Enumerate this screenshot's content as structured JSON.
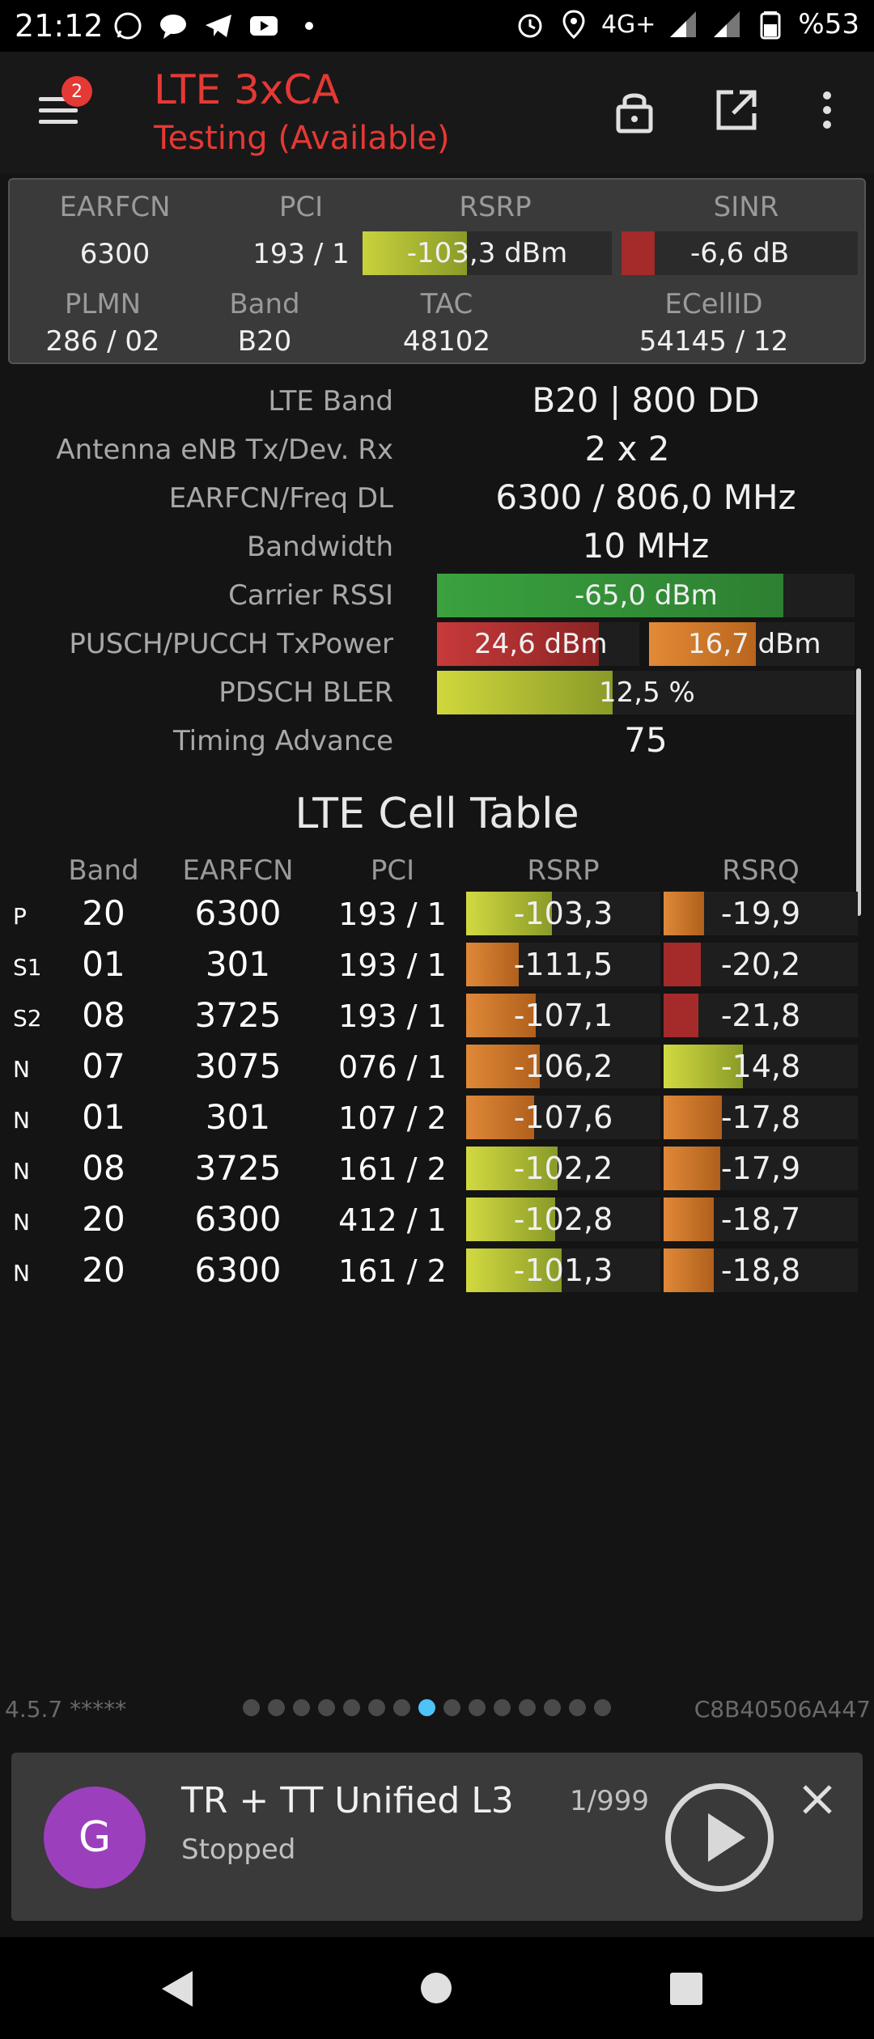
{
  "status_bar": {
    "time": "21:12",
    "network": "4G+",
    "battery": "%53",
    "left_icons": [
      "whatsapp-icon",
      "chat-bubble-icon",
      "telegram-icon",
      "youtube-icon",
      "dot-icon"
    ],
    "right_icons": [
      "alarm-icon",
      "location-icon",
      "signal-icon",
      "signal-icon",
      "battery-icon"
    ]
  },
  "app_bar": {
    "title": "LTE 3xCA",
    "subtitle": "Testing (Available)",
    "menu_badge": "2",
    "accent": "#e53935"
  },
  "summary": {
    "headers": {
      "earfcn": "EARFCN",
      "pci": "PCI",
      "rsrp": "RSRP",
      "sinr": "SINR",
      "plmn": "PLMN",
      "band": "Band",
      "tac": "TAC",
      "ecellid": "ECellID"
    },
    "earfcn": "6300",
    "pci": "193 / 1",
    "rsrp": {
      "text": "-103,3 dBm",
      "level": 0.42
    },
    "sinr": {
      "text": "-6,6 dB",
      "level": 0.14
    },
    "plmn": "286 / 02",
    "band": "B20",
    "tac": "48102",
    "ecellid": "54145 / 12"
  },
  "details": {
    "lte_band": {
      "label": "LTE Band",
      "value": "B20 | 800 DD"
    },
    "antenna": {
      "label": "Antenna eNB Tx/Dev. Rx",
      "value": "2 x 2"
    },
    "earfcn_freq": {
      "label": "EARFCN/Freq DL",
      "value": "6300 / 806,0 MHz"
    },
    "bandwidth": {
      "label": "Bandwidth",
      "value": "10 MHz"
    },
    "rssi": {
      "label": "Carrier RSSI",
      "value": "-65,0 dBm",
      "level": 0.83
    },
    "txpower": {
      "label": "PUSCH/PUCCH TxPower",
      "pusch": "24,6 dBm",
      "pusch_level": 0.8,
      "pucch": "16,7 dBm",
      "pucch_level": 0.52
    },
    "bler": {
      "label": "PDSCH BLER",
      "value": "12,5 %",
      "level": 0.42
    },
    "timing_advance": {
      "label": "Timing Advance",
      "value": "75"
    }
  },
  "cell_table": {
    "title": "LTE Cell Table",
    "columns": {
      "band": "Band",
      "earfcn": "EARFCN",
      "pci": "PCI",
      "rsrp": "RSRP",
      "rsrq": "RSRQ"
    },
    "rows": [
      {
        "type": "P",
        "band": "20",
        "earfcn": "6300",
        "pci": "193 / 1",
        "rsrp": "-103,3",
        "rsrp_level": 0.44,
        "rsrq": "-19,9",
        "rsrq_level": 0.21
      },
      {
        "type": "S1",
        "band": "01",
        "earfcn": "301",
        "pci": "193 / 1",
        "rsrp": "-111,5",
        "rsrp_level": 0.27,
        "rsrq": "-20,2",
        "rsrq_level": 0.19
      },
      {
        "type": "S2",
        "band": "08",
        "earfcn": "3725",
        "pci": "193 / 1",
        "rsrp": "-107,1",
        "rsrp_level": 0.36,
        "rsrq": "-21,8",
        "rsrq_level": 0.18
      },
      {
        "type": "N",
        "band": "07",
        "earfcn": "3075",
        "pci": "076 / 1",
        "rsrp": "-106,2",
        "rsrp_level": 0.38,
        "rsrq": "-14,8",
        "rsrq_level": 0.41
      },
      {
        "type": "N",
        "band": "01",
        "earfcn": "301",
        "pci": "107 / 2",
        "rsrp": "-107,6",
        "rsrp_level": 0.35,
        "rsrq": "-17,8",
        "rsrq_level": 0.3
      },
      {
        "type": "N",
        "band": "08",
        "earfcn": "3725",
        "pci": "161 / 2",
        "rsrp": "-102,2",
        "rsrp_level": 0.47,
        "rsrq": "-17,9",
        "rsrq_level": 0.29
      },
      {
        "type": "N",
        "band": "20",
        "earfcn": "6300",
        "pci": "412 / 1",
        "rsrp": "-102,8",
        "rsrp_level": 0.46,
        "rsrq": "-18,7",
        "rsrq_level": 0.26
      },
      {
        "type": "N",
        "band": "20",
        "earfcn": "6300",
        "pci": "161 / 2",
        "rsrp": "-101,3",
        "rsrp_level": 0.49,
        "rsrq": "-18,8",
        "rsrq_level": 0.26
      }
    ]
  },
  "footer": {
    "version": "4.5.7 *****",
    "device_id": "C8B40506A447",
    "page_count": 15,
    "active_page": 8
  },
  "media": {
    "avatar_letter": "G",
    "title": "TR + TT Unified L3",
    "status": "Stopped",
    "count": "1/999"
  }
}
